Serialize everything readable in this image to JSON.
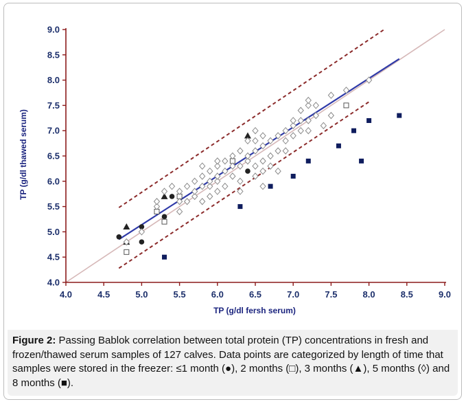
{
  "chart_data": {
    "type": "scatter",
    "xlabel": "TP (g/dl fersh serum)",
    "ylabel": "TP (g/dl thawed serum)",
    "xlim": [
      4.0,
      9.0
    ],
    "ylim": [
      4.0,
      9.0
    ],
    "x_ticks": [
      "4.0",
      "4.5",
      "5.0",
      "5.5",
      "6.0",
      "6.5",
      "7.0",
      "7.5",
      "8.0",
      "8.5",
      "9.0"
    ],
    "y_ticks": [
      "4.0",
      "4.5",
      "5.0",
      "5.5",
      "6.0",
      "6.5",
      "7.0",
      "7.5",
      "8.0",
      "8.5",
      "9.0"
    ],
    "grid": false,
    "colors": {
      "identity_line": "#d6b8b8",
      "regression_line": "#2f3aa8",
      "confidence_bounds": "#8b2a2a",
      "axis": "#8b1a1a",
      "tick_labels": "#1c2f6b",
      "axis_titles": "#1a237e"
    },
    "lines": {
      "identity": {
        "x": [
          4.0,
          9.0
        ],
        "y": [
          4.0,
          9.0
        ]
      },
      "regression": {
        "x": [
          4.7,
          8.4
        ],
        "y": [
          4.85,
          8.42
        ]
      },
      "upper_bound": {
        "x": [
          4.7,
          8.2
        ],
        "y": [
          5.48,
          9.0
        ]
      },
      "lower_bound": {
        "x": [
          4.7,
          8.0
        ],
        "y": [
          4.28,
          7.57
        ]
      }
    },
    "series": [
      {
        "marker": "filled-circle",
        "points": [
          [
            4.7,
            4.9
          ],
          [
            5.0,
            5.1
          ],
          [
            5.0,
            4.8
          ],
          [
            5.2,
            5.4
          ],
          [
            5.3,
            5.3
          ],
          [
            5.4,
            5.7
          ],
          [
            6.4,
            6.2
          ]
        ]
      },
      {
        "marker": "open-square",
        "points": [
          [
            4.8,
            4.6
          ],
          [
            5.2,
            5.4
          ],
          [
            5.3,
            5.2
          ],
          [
            5.5,
            5.7
          ],
          [
            6.2,
            6.4
          ],
          [
            7.7,
            7.5
          ]
        ]
      },
      {
        "marker": "filled-triangle",
        "points": [
          [
            4.8,
            5.1
          ],
          [
            4.8,
            4.8
          ],
          [
            5.3,
            5.7
          ],
          [
            6.4,
            6.9
          ]
        ]
      },
      {
        "marker": "open-diamond",
        "points": [
          [
            4.8,
            4.8
          ],
          [
            5.0,
            5.0
          ],
          [
            5.2,
            5.5
          ],
          [
            5.2,
            5.6
          ],
          [
            5.3,
            5.8
          ],
          [
            5.4,
            5.9
          ],
          [
            5.5,
            5.4
          ],
          [
            5.5,
            5.6
          ],
          [
            5.5,
            5.8
          ],
          [
            5.6,
            5.6
          ],
          [
            5.6,
            5.9
          ],
          [
            5.7,
            5.7
          ],
          [
            5.7,
            5.8
          ],
          [
            5.7,
            6.0
          ],
          [
            5.8,
            5.6
          ],
          [
            5.8,
            5.9
          ],
          [
            5.8,
            6.1
          ],
          [
            5.8,
            6.3
          ],
          [
            5.9,
            5.7
          ],
          [
            5.9,
            5.9
          ],
          [
            5.9,
            6.0
          ],
          [
            5.9,
            6.2
          ],
          [
            6.0,
            5.8
          ],
          [
            6.0,
            6.0
          ],
          [
            6.0,
            6.1
          ],
          [
            6.0,
            6.3
          ],
          [
            6.0,
            6.4
          ],
          [
            6.1,
            5.9
          ],
          [
            6.1,
            6.2
          ],
          [
            6.1,
            6.4
          ],
          [
            6.2,
            6.1
          ],
          [
            6.2,
            6.3
          ],
          [
            6.2,
            6.5
          ],
          [
            6.3,
            6.0
          ],
          [
            6.3,
            6.3
          ],
          [
            6.3,
            6.6
          ],
          [
            6.4,
            6.4
          ],
          [
            6.4,
            6.5
          ],
          [
            6.4,
            6.8
          ],
          [
            6.5,
            6.1
          ],
          [
            6.5,
            6.3
          ],
          [
            6.5,
            6.6
          ],
          [
            6.5,
            6.8
          ],
          [
            6.5,
            7.0
          ],
          [
            6.6,
            6.2
          ],
          [
            6.6,
            6.4
          ],
          [
            6.6,
            6.7
          ],
          [
            6.6,
            6.9
          ],
          [
            6.7,
            6.3
          ],
          [
            6.7,
            6.5
          ],
          [
            6.7,
            6.8
          ],
          [
            6.8,
            6.6
          ],
          [
            6.8,
            6.9
          ],
          [
            6.9,
            6.6
          ],
          [
            6.9,
            6.8
          ],
          [
            6.9,
            7.0
          ],
          [
            7.0,
            6.9
          ],
          [
            7.0,
            7.1
          ],
          [
            7.0,
            7.2
          ],
          [
            7.1,
            7.0
          ],
          [
            7.1,
            7.2
          ],
          [
            7.1,
            7.4
          ],
          [
            7.2,
            7.0
          ],
          [
            7.2,
            7.2
          ],
          [
            7.2,
            7.5
          ],
          [
            7.2,
            7.6
          ],
          [
            7.3,
            7.3
          ],
          [
            7.3,
            7.5
          ],
          [
            7.4,
            7.1
          ],
          [
            7.5,
            7.3
          ],
          [
            7.5,
            7.7
          ],
          [
            7.7,
            7.8
          ],
          [
            8.0,
            8.0
          ],
          [
            6.8,
            6.2
          ],
          [
            6.6,
            5.9
          ],
          [
            6.3,
            5.8
          ]
        ]
      },
      {
        "marker": "filled-square",
        "points": [
          [
            5.3,
            4.5
          ],
          [
            6.3,
            5.5
          ],
          [
            6.7,
            5.9
          ],
          [
            7.0,
            6.1
          ],
          [
            7.2,
            6.4
          ],
          [
            7.6,
            6.7
          ],
          [
            7.8,
            7.0
          ],
          [
            7.9,
            6.4
          ],
          [
            8.0,
            7.2
          ],
          [
            8.4,
            7.3
          ]
        ]
      }
    ]
  },
  "caption": {
    "label": "Figure 2:",
    "text": " Passing Bablok correlation between total protein (TP) concentrations in fresh and frozen/thawed serum samples of 127 calves. Data points are categorized by length of time that samples were stored in the freezer: ≤1 month (●), 2 months (□), 3 months (▲), 5 months (◊) and 8 months (■)."
  }
}
